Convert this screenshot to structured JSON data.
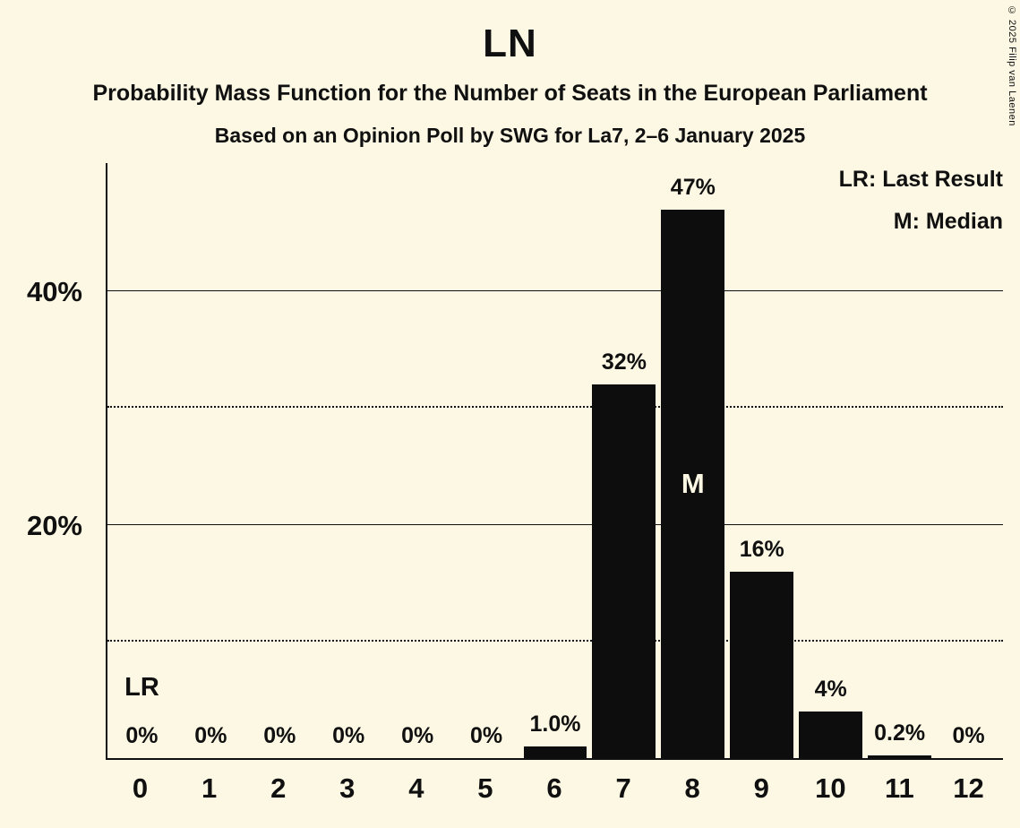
{
  "chart": {
    "title": "LN",
    "subtitle": "Probability Mass Function for the Number of Seats in the European Parliament",
    "subsubtitle": "Based on an Opinion Poll by SWG for La7, 2–6 January 2025"
  },
  "legend": {
    "lr": "LR: Last Result",
    "m": "M: Median"
  },
  "copyright": "© 2025 Filip van Laenen",
  "colors": {
    "background": "#FCF8E3",
    "bar": "#0D0D0D",
    "text": "#101010",
    "median_label_text": "#FCF8E3"
  },
  "chart_data": {
    "type": "bar",
    "title": "LN",
    "categories": [
      "0",
      "1",
      "2",
      "3",
      "4",
      "5",
      "6",
      "7",
      "8",
      "9",
      "10",
      "11",
      "12"
    ],
    "values": [
      0,
      0,
      0,
      0,
      0,
      0,
      1.0,
      32,
      47,
      16,
      4,
      0.2,
      0
    ],
    "labels": [
      "0%",
      "0%",
      "0%",
      "0%",
      "0%",
      "0%",
      "1.0%",
      "32%",
      "47%",
      "16%",
      "4%",
      "0.2%",
      "0%"
    ],
    "xlabel": "",
    "ylabel": "",
    "ylim": [
      0,
      51
    ],
    "grid": true,
    "legend_position": "top-right",
    "yticks": [
      {
        "value": 20,
        "label": "20%"
      },
      {
        "value": 40,
        "label": "40%"
      }
    ],
    "gridlines": [
      {
        "value": 10,
        "style": "dotted"
      },
      {
        "value": 20,
        "style": "solid"
      },
      {
        "value": 30,
        "style": "dotted"
      },
      {
        "value": 40,
        "style": "solid"
      }
    ],
    "annotations": {
      "last_result_seat": 0,
      "last_result_label": "LR",
      "median_seat": 8,
      "median_label": "M"
    }
  }
}
